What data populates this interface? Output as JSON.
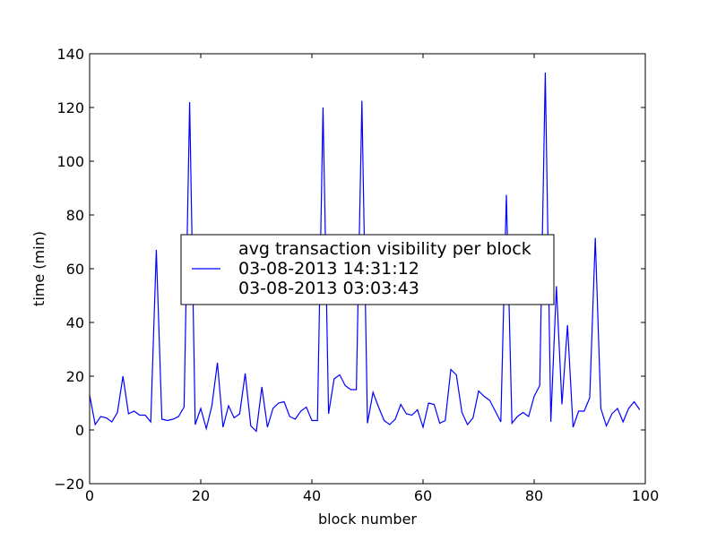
{
  "chart_data": {
    "type": "line",
    "title": "",
    "xlabel": "block number",
    "ylabel": "time (min)",
    "xlim": [
      0,
      100
    ],
    "ylim": [
      -20,
      140
    ],
    "x_ticks": [
      "0",
      "20",
      "40",
      "60",
      "80",
      "100"
    ],
    "y_ticks": [
      "−20",
      "0",
      "20",
      "40",
      "60",
      "80",
      "100",
      "120",
      "140"
    ],
    "grid": false,
    "legend_placement": "center",
    "legend_lines": [
      "avg transaction visibility per block",
      "03-08-2013 14:31:12",
      "03-08-2013 03:03:43"
    ],
    "series": [
      {
        "color": "#0000ff",
        "x": [
          0,
          1,
          2,
          3,
          4,
          5,
          6,
          7,
          8,
          9,
          10,
          11,
          12,
          13,
          14,
          15,
          16,
          17,
          18,
          19,
          20,
          21,
          22,
          23,
          24,
          25,
          26,
          27,
          28,
          29,
          30,
          31,
          32,
          33,
          34,
          35,
          36,
          37,
          38,
          39,
          40,
          41,
          42,
          43,
          44,
          45,
          46,
          47,
          48,
          49,
          50,
          51,
          52,
          53,
          54,
          55,
          56,
          57,
          58,
          59,
          60,
          61,
          62,
          63,
          64,
          65,
          66,
          67,
          68,
          69,
          70,
          71,
          72,
          73,
          74,
          75,
          76,
          77,
          78,
          79,
          80,
          81,
          82,
          83,
          84,
          85,
          86,
          87,
          88,
          89,
          90,
          91,
          92,
          93,
          94,
          95,
          96,
          97,
          98,
          99
        ],
        "values": [
          13,
          2,
          5,
          4.5,
          3,
          6.5,
          20,
          6,
          7,
          5.5,
          5.5,
          3,
          67,
          4,
          3.5,
          4,
          5,
          8.5,
          122,
          2,
          8,
          0.5,
          9,
          25,
          1,
          9,
          4.5,
          6,
          21,
          1.5,
          -0.5,
          16,
          1,
          8,
          10,
          10.5,
          5,
          4,
          7,
          8.5,
          3.5,
          3.5,
          120,
          6,
          19,
          20.5,
          16.5,
          15,
          15,
          122.5,
          2.5,
          14,
          8.5,
          3.5,
          2,
          4,
          9.5,
          6,
          5.5,
          7.5,
          1,
          10,
          9.5,
          2.5,
          3.5,
          22.5,
          20.5,
          6.5,
          2,
          4.5,
          14.5,
          12.5,
          11,
          7,
          3,
          87.5,
          2.5,
          5,
          6.5,
          5,
          12.5,
          16.5,
          133,
          3,
          53.5,
          9.5,
          39,
          1,
          7,
          7,
          12,
          71.5,
          8,
          1.5,
          6,
          8,
          3,
          8,
          10.5,
          7.5
        ]
      }
    ]
  }
}
